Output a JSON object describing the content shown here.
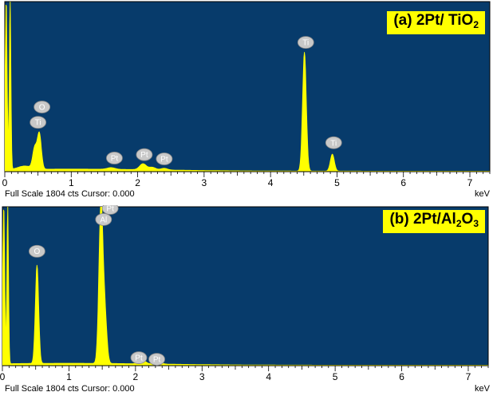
{
  "colors": {
    "plot_bg": "#073b6b",
    "spectrum": "#ffff00",
    "marker_fill": "#c8c8c8",
    "marker_text": "#ffffff"
  },
  "chart_data": [
    {
      "type": "line",
      "title": {
        "prefix": "(a) 2Pt/ TiO",
        "sub": "2",
        "suffix": ""
      },
      "xlabel": "keV",
      "ylabel": "",
      "xlim": [
        0,
        7.3
      ],
      "ylim": [
        0,
        1
      ],
      "x_ticks": [
        0,
        1,
        2,
        3,
        4,
        5,
        6,
        7
      ],
      "footer": "Full Scale 1804 cts Cursor: 0.000",
      "grid": false,
      "peaks": [
        {
          "x": 0.02,
          "y": 1.0,
          "w": 0.015
        },
        {
          "x": 0.08,
          "y": 1.0,
          "w": 0.012
        },
        {
          "x": 0.52,
          "y": 0.21,
          "w": 0.03
        },
        {
          "x": 0.45,
          "y": 0.12,
          "w": 0.03
        },
        {
          "x": 0.3,
          "y": 0.02,
          "w": 0.1
        },
        {
          "x": 1.6,
          "y": 0.01,
          "w": 0.06
        },
        {
          "x": 2.08,
          "y": 0.035,
          "w": 0.05
        },
        {
          "x": 2.22,
          "y": 0.015,
          "w": 0.05
        },
        {
          "x": 2.4,
          "y": 0.01,
          "w": 0.05
        },
        {
          "x": 4.51,
          "y": 0.7,
          "w": 0.028
        },
        {
          "x": 4.93,
          "y": 0.1,
          "w": 0.03
        }
      ],
      "annotations": [
        {
          "label": "O",
          "x": 0.56,
          "y": 0.38
        },
        {
          "label": "Ti",
          "x": 0.5,
          "y": 0.29
        },
        {
          "label": "Pt",
          "x": 1.65,
          "y": 0.08
        },
        {
          "label": "Pt",
          "x": 2.1,
          "y": 0.1
        },
        {
          "label": "Pt",
          "x": 2.4,
          "y": 0.075
        },
        {
          "label": "Ti",
          "x": 4.53,
          "y": 0.76
        },
        {
          "label": "Ti",
          "x": 4.95,
          "y": 0.17
        }
      ]
    },
    {
      "type": "line",
      "title": {
        "prefix": "(b) 2Pt/Al",
        "sub": "2",
        "suffix": "O",
        "sub2": "3"
      },
      "xlabel": "keV",
      "ylabel": "",
      "xlim": [
        0,
        7.3
      ],
      "ylim": [
        0,
        1
      ],
      "x_ticks": [
        0,
        1,
        2,
        3,
        4,
        5,
        6,
        7
      ],
      "footer": "Full Scale 1804 cts Cursor: 0.000",
      "grid": false,
      "peaks": [
        {
          "x": 0.02,
          "y": 1.0,
          "w": 0.015
        },
        {
          "x": 0.08,
          "y": 1.0,
          "w": 0.012
        },
        {
          "x": 0.52,
          "y": 0.62,
          "w": 0.025
        },
        {
          "x": 1.48,
          "y": 0.99,
          "w": 0.03
        },
        {
          "x": 1.54,
          "y": 0.3,
          "w": 0.03
        },
        {
          "x": 2.1,
          "y": 0.025,
          "w": 0.05
        },
        {
          "x": 2.35,
          "y": 0.012,
          "w": 0.05
        }
      ],
      "annotations": [
        {
          "label": "Pt",
          "x": 1.62,
          "y": 0.99
        },
        {
          "label": "Al",
          "x": 1.52,
          "y": 0.92
        },
        {
          "label": "O",
          "x": 0.52,
          "y": 0.72
        },
        {
          "label": "Pt",
          "x": 2.05,
          "y": 0.05
        },
        {
          "label": "Pt",
          "x": 2.32,
          "y": 0.04
        }
      ]
    }
  ]
}
